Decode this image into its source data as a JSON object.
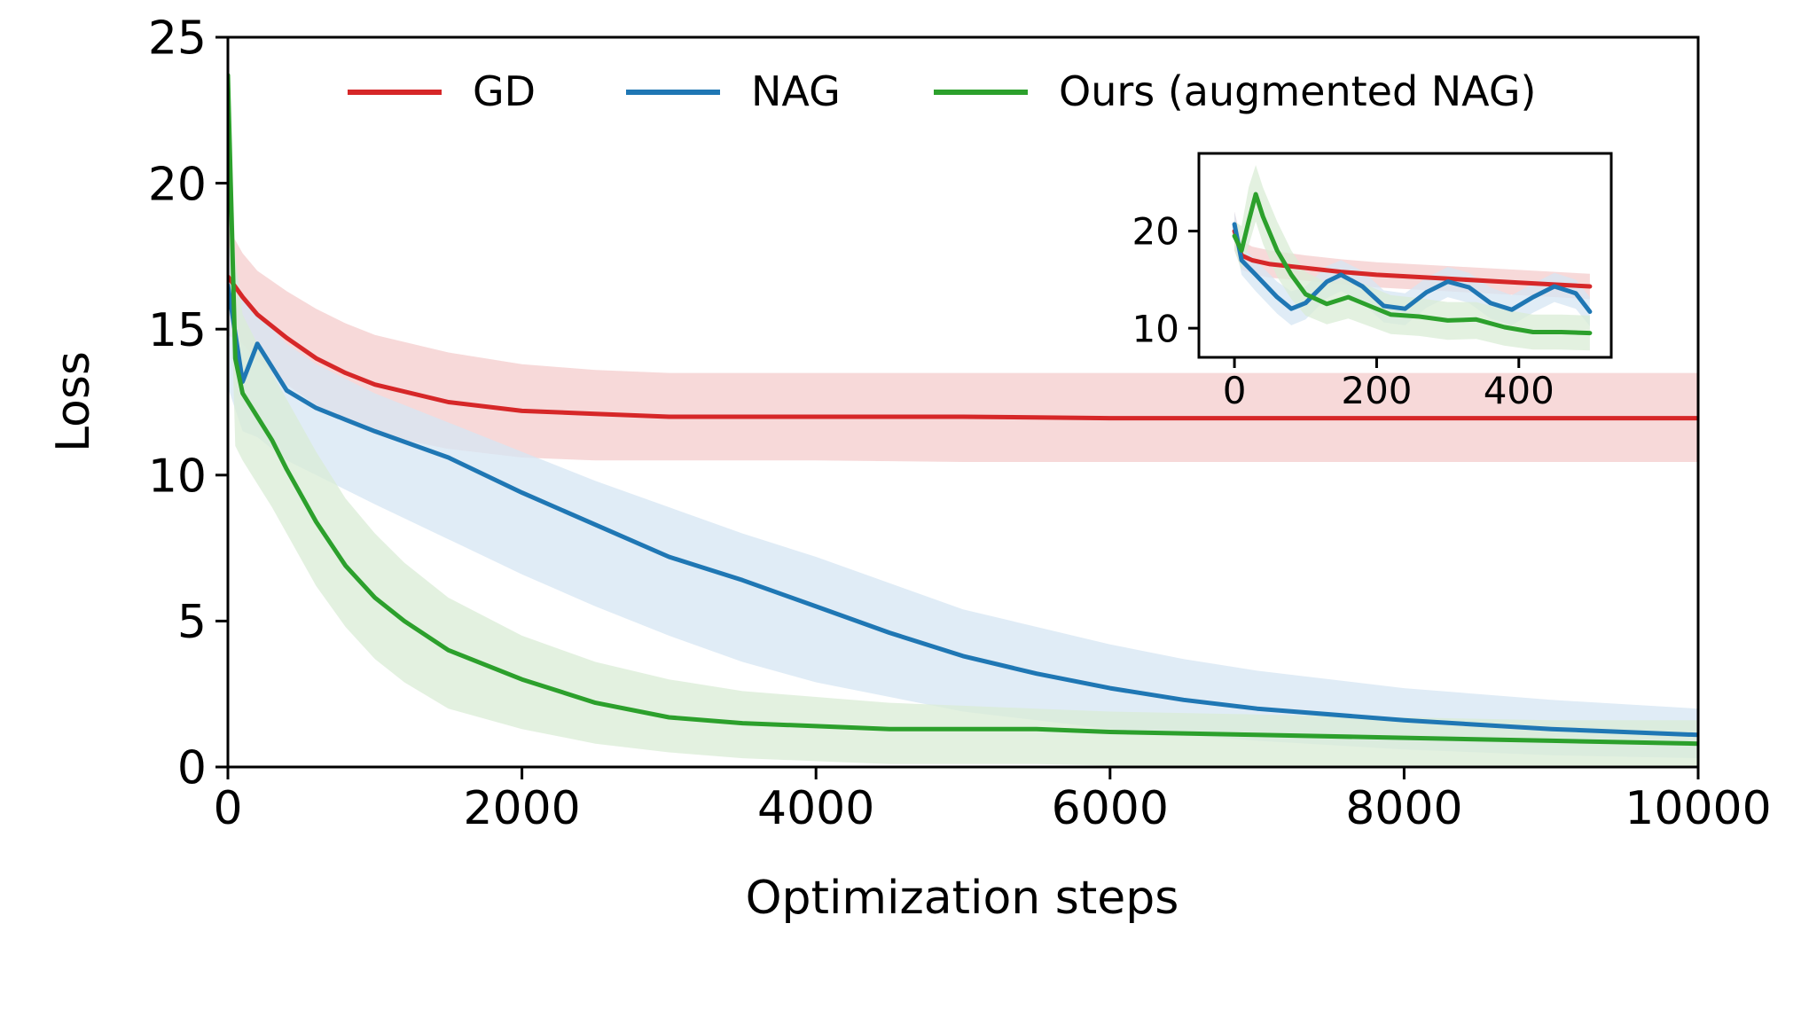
{
  "chart_data": {
    "type": "line",
    "title": "",
    "xlabel": "Optimization steps",
    "ylabel": "Loss",
    "xlim": [
      0,
      10000
    ],
    "ylim": [
      0,
      25
    ],
    "xticks": [
      0,
      2000,
      4000,
      6000,
      8000,
      10000
    ],
    "xtick_labels": [
      "0",
      "2000",
      "4000",
      "6000",
      "8000",
      "10000"
    ],
    "yticks": [
      0,
      5,
      10,
      15,
      20,
      25
    ],
    "ytick_labels": [
      "0",
      "5",
      "10",
      "15",
      "20",
      "25"
    ],
    "grid": false,
    "legend": {
      "position": "top",
      "entries": [
        "GD",
        "NAG",
        "Ours (augmented NAG)"
      ]
    },
    "series": [
      {
        "name": "GD",
        "color": "#d62728",
        "band_color": "#f4cccc",
        "x": [
          0,
          100,
          200,
          400,
          600,
          800,
          1000,
          1500,
          2000,
          2500,
          3000,
          4000,
          5000,
          6000,
          7000,
          8000,
          9000,
          10000
        ],
        "y": [
          16.8,
          16.1,
          15.5,
          14.7,
          14.0,
          13.5,
          13.1,
          12.5,
          12.2,
          12.1,
          12.0,
          12.0,
          12.0,
          11.95,
          11.95,
          11.95,
          11.95,
          11.95
        ],
        "band_upper": [
          18.5,
          17.6,
          17.0,
          16.3,
          15.7,
          15.2,
          14.8,
          14.2,
          13.8,
          13.6,
          13.5,
          13.5,
          13.5,
          13.5,
          13.5,
          13.5,
          13.5,
          13.5
        ],
        "band_lower": [
          14.8,
          14.5,
          13.9,
          13.1,
          12.4,
          11.8,
          11.4,
          10.9,
          10.6,
          10.5,
          10.5,
          10.5,
          10.45,
          10.45,
          10.45,
          10.45,
          10.45,
          10.45
        ]
      },
      {
        "name": "NAG",
        "color": "#1f77b4",
        "band_color": "#d6e6f3",
        "x": [
          0,
          100,
          200,
          400,
          600,
          800,
          1000,
          1500,
          2000,
          2500,
          3000,
          3500,
          4000,
          4500,
          5000,
          5500,
          6000,
          6500,
          7000,
          8000,
          9000,
          10000
        ],
        "y": [
          16.5,
          13.2,
          14.5,
          12.9,
          12.3,
          11.9,
          11.5,
          10.6,
          9.4,
          8.3,
          7.2,
          6.4,
          5.5,
          4.6,
          3.8,
          3.2,
          2.7,
          2.3,
          2.0,
          1.6,
          1.3,
          1.1
        ],
        "band_upper": [
          18.0,
          16.0,
          15.5,
          14.5,
          13.8,
          13.3,
          12.8,
          11.8,
          10.8,
          9.8,
          8.9,
          8.0,
          7.2,
          6.3,
          5.4,
          4.8,
          4.2,
          3.7,
          3.3,
          2.7,
          2.3,
          2.0
        ],
        "band_lower": [
          13.0,
          11.5,
          11.3,
          10.5,
          10.0,
          9.5,
          9.0,
          7.8,
          6.6,
          5.5,
          4.5,
          3.6,
          2.9,
          2.4,
          1.9,
          1.6,
          1.3,
          1.1,
          0.9,
          0.6,
          0.4,
          0.3
        ]
      },
      {
        "name": "Ours (augmented NAG)",
        "color": "#2ca02c",
        "band_color": "#d9ecd5",
        "x": [
          0,
          50,
          100,
          200,
          300,
          400,
          600,
          800,
          1000,
          1200,
          1500,
          2000,
          2500,
          3000,
          3500,
          4000,
          4500,
          5000,
          5500,
          6000,
          7000,
          8000,
          9000,
          10000
        ],
        "y": [
          23.7,
          14.0,
          12.8,
          12.0,
          11.2,
          10.2,
          8.4,
          6.9,
          5.8,
          5.0,
          4.0,
          3.0,
          2.2,
          1.7,
          1.5,
          1.4,
          1.3,
          1.3,
          1.3,
          1.2,
          1.1,
          1.0,
          0.9,
          0.8
        ],
        "band_upper": [
          25.0,
          17.5,
          15.5,
          14.5,
          13.5,
          12.6,
          10.8,
          9.2,
          8.0,
          7.0,
          5.8,
          4.5,
          3.6,
          3.0,
          2.6,
          2.4,
          2.2,
          2.1,
          2.0,
          1.9,
          1.8,
          1.7,
          1.6,
          1.6
        ],
        "band_lower": [
          20.0,
          11.0,
          10.5,
          9.7,
          8.9,
          8.0,
          6.2,
          4.8,
          3.7,
          2.9,
          2.0,
          1.3,
          0.8,
          0.5,
          0.3,
          0.2,
          0.1,
          0.1,
          0.1,
          0.05,
          0.05,
          0.05,
          0.05,
          0.05
        ]
      }
    ],
    "inset": {
      "type": "line",
      "xlim": [
        -50,
        530
      ],
      "ylim": [
        7,
        28
      ],
      "xticks": [
        0,
        200,
        400
      ],
      "xtick_labels": [
        "0",
        "200",
        "400"
      ],
      "yticks": [
        10,
        20
      ],
      "ytick_labels": [
        "10",
        "20"
      ],
      "series": [
        {
          "name": "GD",
          "color": "#d62728",
          "band_color": "#f4cccc",
          "x": [
            0,
            10,
            25,
            50,
            100,
            150,
            200,
            300,
            400,
            500
          ],
          "y": [
            20.0,
            17.5,
            17.0,
            16.6,
            16.2,
            15.8,
            15.5,
            15.1,
            14.7,
            14.3
          ],
          "band_upper": [
            22.0,
            19.0,
            18.4,
            18.0,
            17.5,
            17.1,
            16.8,
            16.4,
            16.0,
            15.6
          ],
          "band_lower": [
            18.0,
            16.0,
            15.6,
            15.2,
            14.9,
            14.5,
            14.2,
            13.8,
            13.4,
            13.0
          ]
        },
        {
          "name": "NAG",
          "color": "#1f77b4",
          "band_color": "#d6e6f3",
          "x": [
            0,
            10,
            30,
            60,
            80,
            100,
            130,
            150,
            180,
            210,
            240,
            270,
            300,
            330,
            360,
            390,
            420,
            450,
            480,
            500
          ],
          "y": [
            20.7,
            17.0,
            15.5,
            13.2,
            12.0,
            12.6,
            14.8,
            15.5,
            14.3,
            12.3,
            12.0,
            13.7,
            14.8,
            14.2,
            12.6,
            11.9,
            13.2,
            14.3,
            13.6,
            11.7
          ],
          "band_upper": [
            22.0,
            18.5,
            17.0,
            14.8,
            13.8,
            14.3,
            16.4,
            17.0,
            15.9,
            13.9,
            13.6,
            15.2,
            16.3,
            15.7,
            14.2,
            13.4,
            14.6,
            15.7,
            15.0,
            13.2
          ],
          "band_lower": [
            19.0,
            15.5,
            13.8,
            11.5,
            10.3,
            10.9,
            13.1,
            13.8,
            12.6,
            10.6,
            10.3,
            12.1,
            13.2,
            12.6,
            11.0,
            10.3,
            11.6,
            12.7,
            12.0,
            10.2
          ]
        },
        {
          "name": "Ours (augmented NAG)",
          "color": "#2ca02c",
          "band_color": "#d9ecd5",
          "x": [
            0,
            10,
            20,
            30,
            40,
            60,
            80,
            100,
            130,
            160,
            190,
            220,
            260,
            300,
            340,
            380,
            420,
            460,
            500
          ],
          "y": [
            19.5,
            18.0,
            21.0,
            23.8,
            21.5,
            18.0,
            15.5,
            13.5,
            12.5,
            13.2,
            12.3,
            11.4,
            11.2,
            10.8,
            10.9,
            10.1,
            9.6,
            9.6,
            9.5
          ],
          "band_upper": [
            21.0,
            20.5,
            24.5,
            26.8,
            24.5,
            21.0,
            18.0,
            15.8,
            14.7,
            15.2,
            14.3,
            13.4,
            13.1,
            12.7,
            12.7,
            11.9,
            11.4,
            11.4,
            11.3
          ],
          "band_lower": [
            18.0,
            16.0,
            18.5,
            21.0,
            18.7,
            15.3,
            13.0,
            11.3,
            10.4,
            11.0,
            10.2,
            9.4,
            9.2,
            8.8,
            8.9,
            8.2,
            7.8,
            7.8,
            7.7
          ]
        }
      ]
    }
  }
}
